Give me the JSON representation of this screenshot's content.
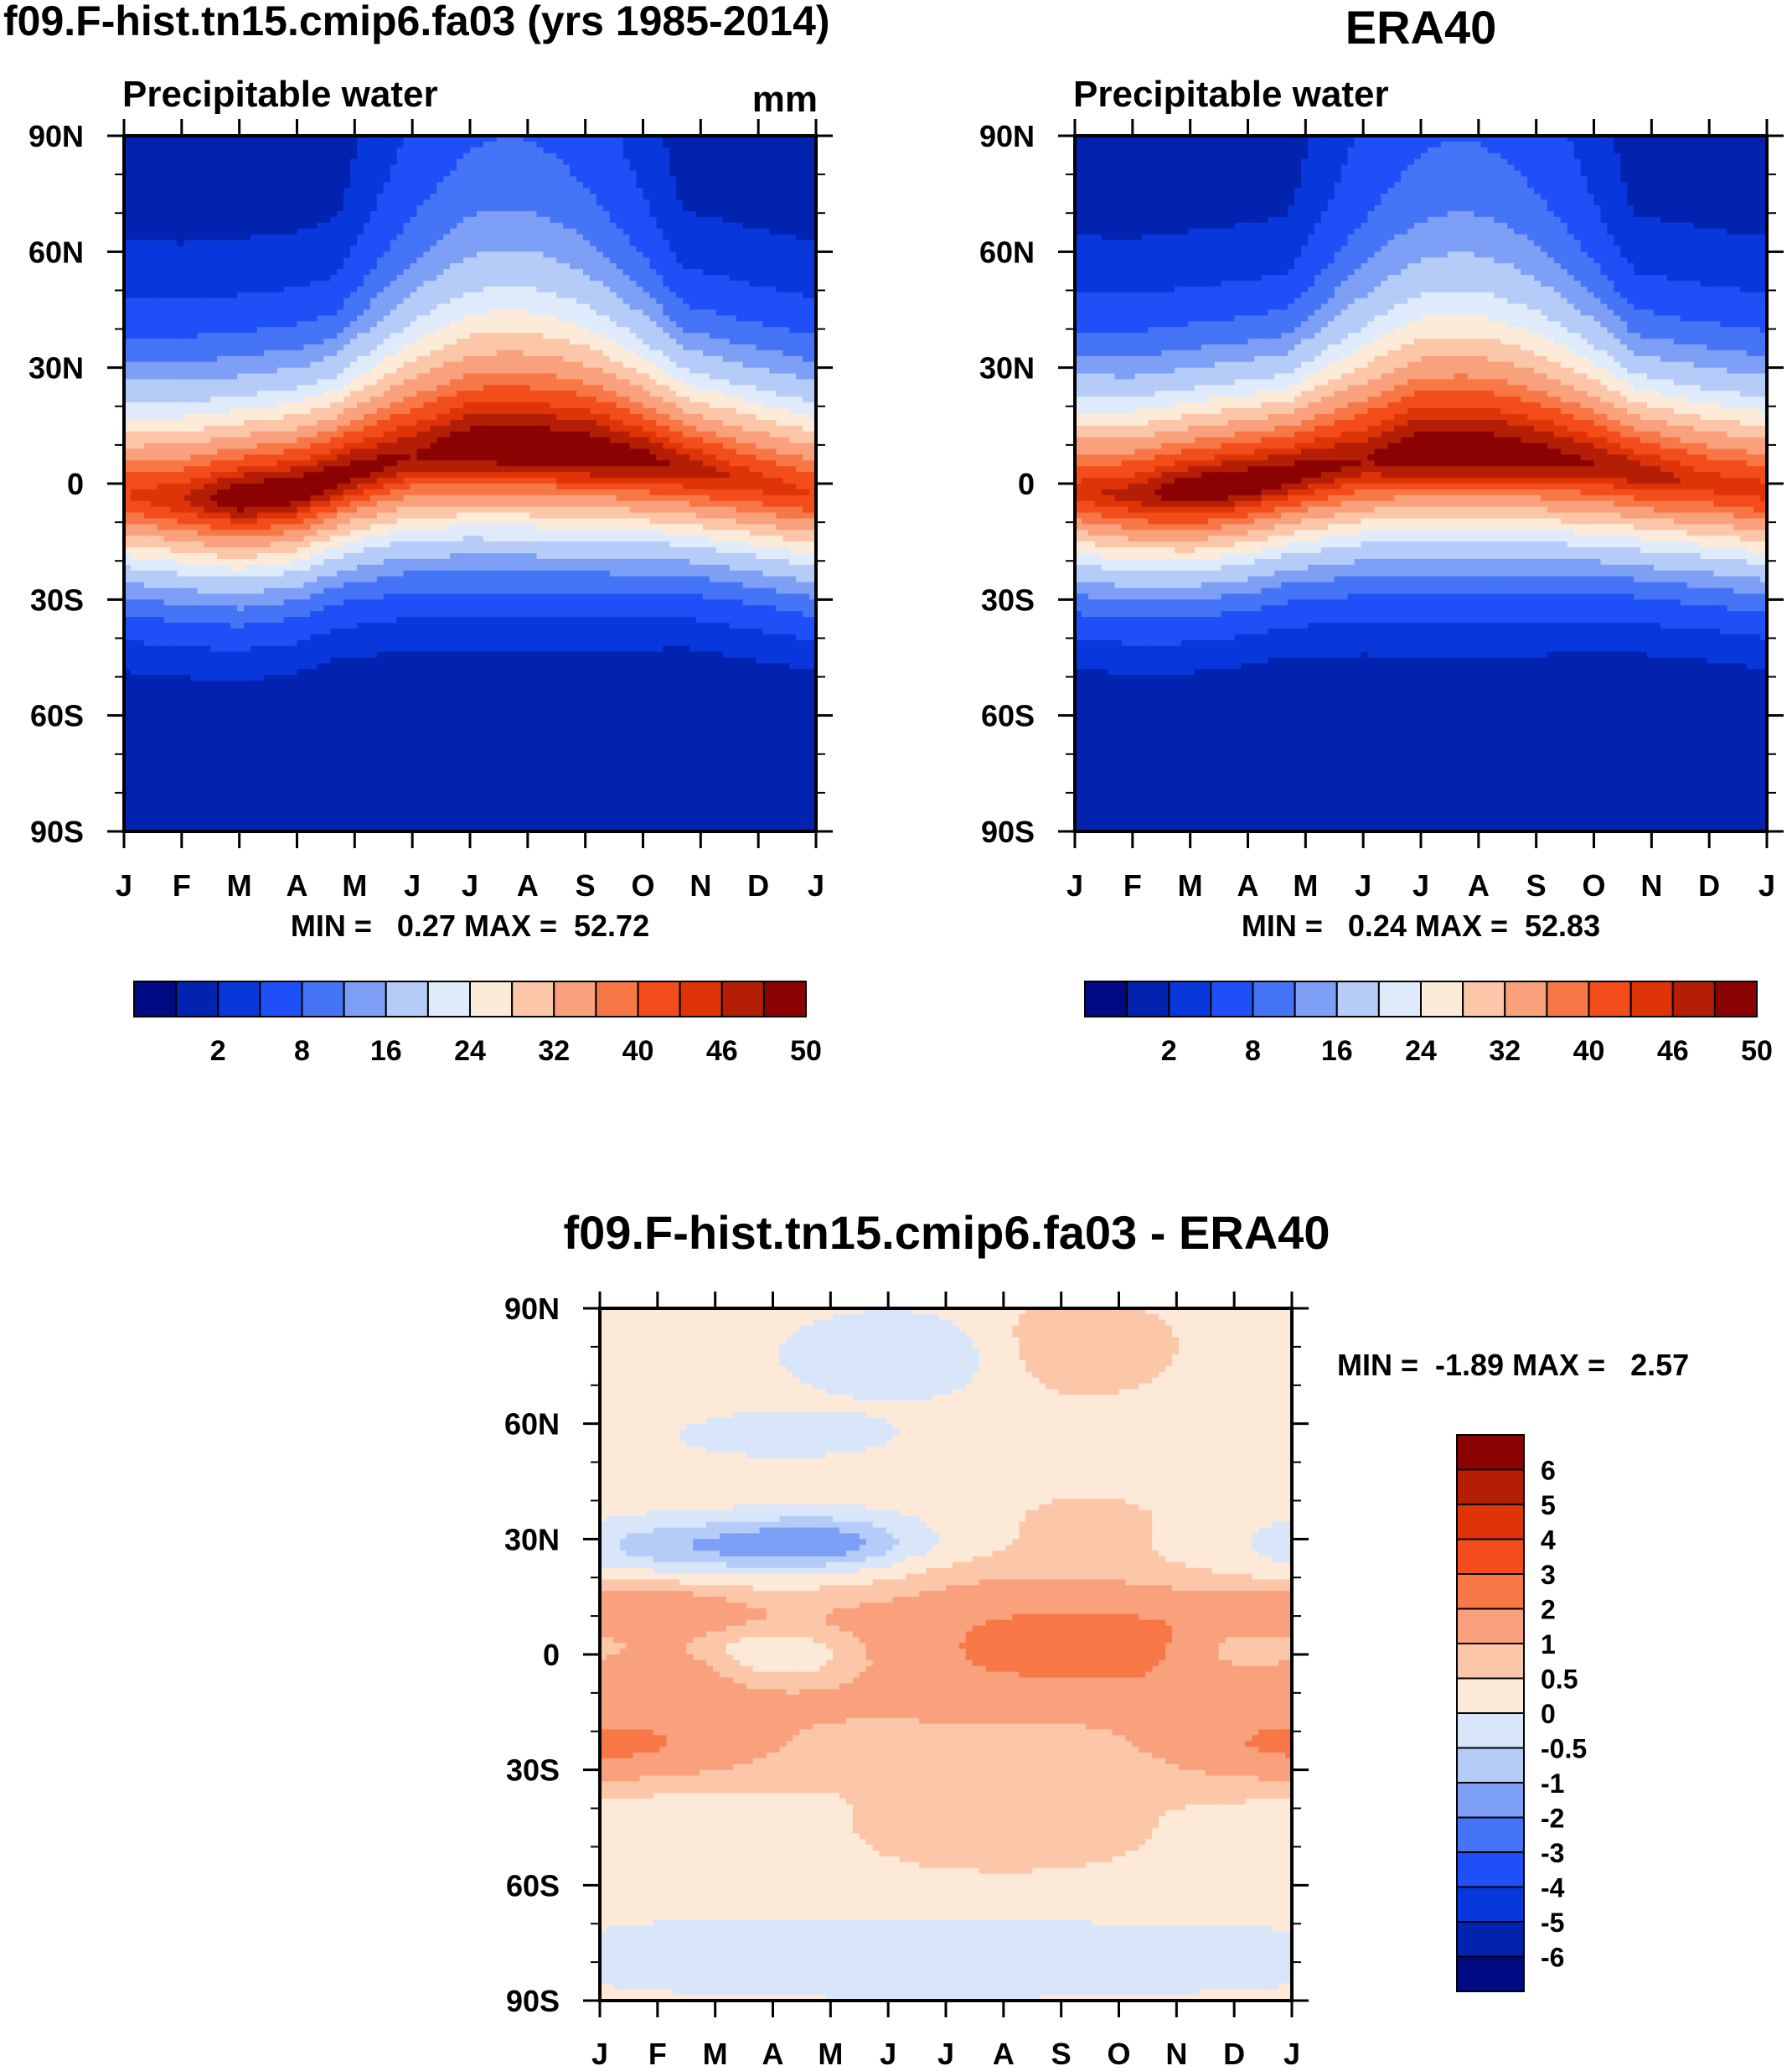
{
  "chart_data": [
    {
      "type": "heatmap",
      "id": "model",
      "title": "f09.F-hist.tn15.cmip6.fa03 (yrs 1985-2014)",
      "subtitle": "Precipitable water",
      "units": "mm",
      "x_tick_labels": [
        "J",
        "F",
        "M",
        "A",
        "M",
        "J",
        "J",
        "A",
        "S",
        "O",
        "N",
        "D",
        "J"
      ],
      "y_tick_labels": [
        "90N",
        "60N",
        "30N",
        "0",
        "30S",
        "60S",
        "90S"
      ],
      "ylim": [
        -90,
        90
      ],
      "stats": {
        "label": "MIN =   0.27 MAX =  52.72",
        "min": 0.27,
        "max": 52.72
      },
      "colorbar": {
        "labels": [
          "2",
          "8",
          "16",
          "24",
          "32",
          "40",
          "46",
          "50"
        ]
      },
      "peak_ridge": {
        "lat_by_month": [
          -3,
          -4,
          -4,
          -2,
          3,
          7,
          9,
          9,
          8,
          6,
          3,
          0,
          -3
        ],
        "peak_mm": [
          46,
          48,
          52,
          52,
          51,
          50,
          52,
          52,
          52,
          51,
          49,
          47,
          46
        ]
      }
    },
    {
      "type": "heatmap",
      "id": "obs",
      "title": "ERA40",
      "subtitle": "Precipitable water",
      "x_tick_labels": [
        "J",
        "F",
        "M",
        "A",
        "M",
        "J",
        "J",
        "A",
        "S",
        "O",
        "N",
        "D",
        "J"
      ],
      "y_tick_labels": [
        "90N",
        "60N",
        "30N",
        "0",
        "30S",
        "60S",
        "90S"
      ],
      "ylim": [
        -90,
        90
      ],
      "stats": {
        "label": "MIN =   0.24 MAX =  52.83",
        "min": 0.24,
        "max": 52.83
      },
      "colorbar": {
        "labels": [
          "2",
          "8",
          "16",
          "24",
          "32",
          "40",
          "46",
          "50"
        ]
      },
      "peak_ridge": {
        "lat_by_month": [
          -2,
          -3,
          -2,
          0,
          3,
          6,
          8,
          8,
          7,
          5,
          2,
          0,
          -2
        ],
        "peak_mm": [
          47,
          49,
          52,
          52,
          51,
          50,
          52,
          52,
          51,
          50,
          49,
          47,
          47
        ]
      }
    },
    {
      "type": "heatmap",
      "id": "diff",
      "title": "f09.F-hist.tn15.cmip6.fa03 - ERA40",
      "x_tick_labels": [
        "J",
        "F",
        "M",
        "A",
        "M",
        "J",
        "J",
        "A",
        "S",
        "O",
        "N",
        "D",
        "J"
      ],
      "y_tick_labels": [
        "90N",
        "60N",
        "30N",
        "0",
        "30S",
        "60S",
        "90S"
      ],
      "ylim": [
        -90,
        90
      ],
      "stats": {
        "label": "MIN =  -1.89 MAX =   2.57",
        "min": -1.89,
        "max": 2.57
      },
      "colorbar": {
        "labels": [
          "6",
          "5",
          "4",
          "3",
          "2",
          "1",
          "0.5",
          "0",
          "-0.5",
          "-1",
          "-2",
          "-3",
          "-4",
          "-5",
          "-6"
        ]
      },
      "levels": [
        -6,
        -5,
        -4,
        -3,
        -2,
        -1,
        -0.5,
        0,
        0.5,
        1,
        2,
        3,
        4,
        5,
        6
      ]
    }
  ],
  "colors": {
    "model_scale": [
      "#000a82",
      "#0222b0",
      "#0838dc",
      "#1f50f7",
      "#4574f6",
      "#7d9ff6",
      "#b5cbf8",
      "#dfebfb",
      "#fdebd9",
      "#fcc6a9",
      "#f9a07c",
      "#f77846",
      "#f24d1a",
      "#df3408",
      "#b41e05",
      "#8a0202"
    ],
    "diff_scale": [
      "#000a82",
      "#0222b0",
      "#0838dc",
      "#1f50f7",
      "#4574f6",
      "#7d9ff6",
      "#b5cbf8",
      "#d9e6fa",
      "#fde9d8",
      "#fcc6a9",
      "#f9a07c",
      "#f77846",
      "#f24d1a",
      "#df3408",
      "#b41e05",
      "#8a0202"
    ]
  }
}
